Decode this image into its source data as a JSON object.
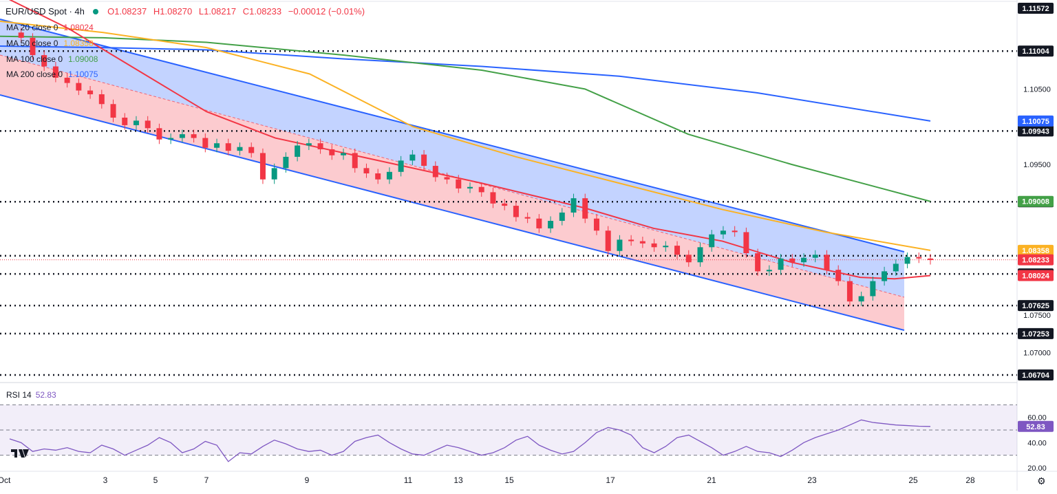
{
  "header": {
    "symbol": "EUR/USD Spot · 4h",
    "open": "O1.08237",
    "high": "H1.08270",
    "low": "L1.08217",
    "close": "C1.08233",
    "change": "−0.00012 (−0.01%)"
  },
  "legend": [
    {
      "name": "MA 20 close 0",
      "value": "1.08024",
      "color": "#f23645"
    },
    {
      "name": "MA 50 close 0",
      "value": "1.08358",
      "color": "#fbb224"
    },
    {
      "name": "MA 100 close 0",
      "value": "1.09008",
      "color": "#43a047"
    },
    {
      "name": "MA 200 close 0",
      "value": "1.10075",
      "color": "#2962ff"
    }
  ],
  "price_axis": {
    "ticks": [
      "1.10500",
      "1.09500",
      "1.07500",
      "1.07000"
    ],
    "level_labels": [
      "1.11572",
      "1.11004",
      "1.09943",
      "1.09003",
      "1.08286",
      "1.08046",
      "1.07625",
      "1.07253",
      "1.06704"
    ],
    "ma_labels": [
      {
        "value": "1.10075",
        "color": "#2962ff"
      },
      {
        "value": "1.09008",
        "color": "#43a047"
      },
      {
        "value": "1.08358",
        "color": "#fbb224"
      },
      {
        "value": "1.08024",
        "color": "#f23645"
      }
    ],
    "last_price": "1.08233"
  },
  "x_axis": {
    "labels": [
      "Oct",
      "3",
      "5",
      "7",
      "9",
      "11",
      "13",
      "15",
      "17",
      "21",
      "23",
      "25",
      "28"
    ]
  },
  "rsi": {
    "label": "RSI 14",
    "value": "52.83",
    "ticks": [
      "60.00",
      "40.00",
      "20.00"
    ]
  },
  "chart_data": {
    "type": "candlestick",
    "instrument": "EUR/USD Spot",
    "timeframe": "4h",
    "ylim": [
      1.0654,
      1.116
    ],
    "horizontal_levels": [
      1.11004,
      1.09943,
      1.09003,
      1.08286,
      1.08046,
      1.07625,
      1.07253,
      1.06704
    ],
    "ohlc_close_path": [
      [
        0,
        1.1125
      ],
      [
        1,
        1.1118
      ],
      [
        2,
        1.1095
      ],
      [
        3,
        1.108
      ],
      [
        4,
        1.1065
      ],
      [
        5,
        1.1058
      ],
      [
        6,
        1.1048
      ],
      [
        7,
        1.1043
      ],
      [
        8,
        1.103
      ],
      [
        9,
        1.1012
      ],
      [
        10,
        1.1002
      ],
      [
        11,
        1.1008
      ],
      [
        12,
        1.0998
      ],
      [
        13,
        1.0983
      ],
      [
        14,
        1.0985
      ],
      [
        15,
        1.099
      ],
      [
        16,
        1.0985
      ],
      [
        17,
        1.0972
      ],
      [
        18,
        1.0978
      ],
      [
        19,
        1.0968
      ],
      [
        20,
        1.0973
      ],
      [
        21,
        1.0965
      ],
      [
        22,
        1.093
      ],
      [
        23,
        1.0945
      ],
      [
        24,
        1.096
      ],
      [
        25,
        1.0975
      ],
      [
        26,
        1.0978
      ],
      [
        27,
        1.097
      ],
      [
        28,
        1.0962
      ],
      [
        29,
        1.0965
      ],
      [
        30,
        1.0945
      ],
      [
        31,
        1.0938
      ],
      [
        32,
        1.093
      ],
      [
        33,
        1.094
      ],
      [
        34,
        1.0955
      ],
      [
        35,
        1.0963
      ],
      [
        36,
        1.0948
      ],
      [
        37,
        1.0933
      ],
      [
        38,
        1.093
      ],
      [
        39,
        1.0918
      ],
      [
        40,
        1.092
      ],
      [
        41,
        1.0913
      ],
      [
        42,
        1.0898
      ],
      [
        43,
        1.0895
      ],
      [
        44,
        1.088
      ],
      [
        45,
        1.0878
      ],
      [
        46,
        1.0865
      ],
      [
        47,
        1.0875
      ],
      [
        48,
        1.0886
      ],
      [
        49,
        1.0905
      ],
      [
        50,
        1.0878
      ],
      [
        51,
        1.0862
      ],
      [
        52,
        1.0835
      ],
      [
        53,
        1.085
      ],
      [
        54,
        1.0848
      ],
      [
        55,
        1.0845
      ],
      [
        56,
        1.084
      ],
      [
        57,
        1.0842
      ],
      [
        58,
        1.083
      ],
      [
        59,
        1.082
      ],
      [
        60,
        1.084
      ],
      [
        61,
        1.0857
      ],
      [
        62,
        1.0862
      ],
      [
        63,
        1.086
      ],
      [
        64,
        1.0832
      ],
      [
        65,
        1.0808
      ],
      [
        66,
        1.081
      ],
      [
        67,
        1.0825
      ],
      [
        68,
        1.082
      ],
      [
        69,
        1.0826
      ],
      [
        70,
        1.083
      ],
      [
        71,
        1.081
      ],
      [
        72,
        1.0795
      ],
      [
        73,
        1.0768
      ],
      [
        74,
        1.0775
      ],
      [
        75,
        1.0795
      ],
      [
        76,
        1.0808
      ],
      [
        77,
        1.0818
      ],
      [
        78,
        1.0827
      ],
      [
        79,
        1.0825
      ],
      [
        80,
        1.0823
      ]
    ],
    "moving_averages": [
      {
        "name": "MA 20 close 0",
        "last": 1.08024
      },
      {
        "name": "MA 50 close 0",
        "last": 1.08358
      },
      {
        "name": "MA 100 close 0",
        "last": 1.09008
      },
      {
        "name": "MA 200 close 0",
        "last": 1.10075
      }
    ],
    "rsi": {
      "period": 14,
      "last": 52.83,
      "levels": [
        70,
        50,
        30
      ]
    }
  }
}
